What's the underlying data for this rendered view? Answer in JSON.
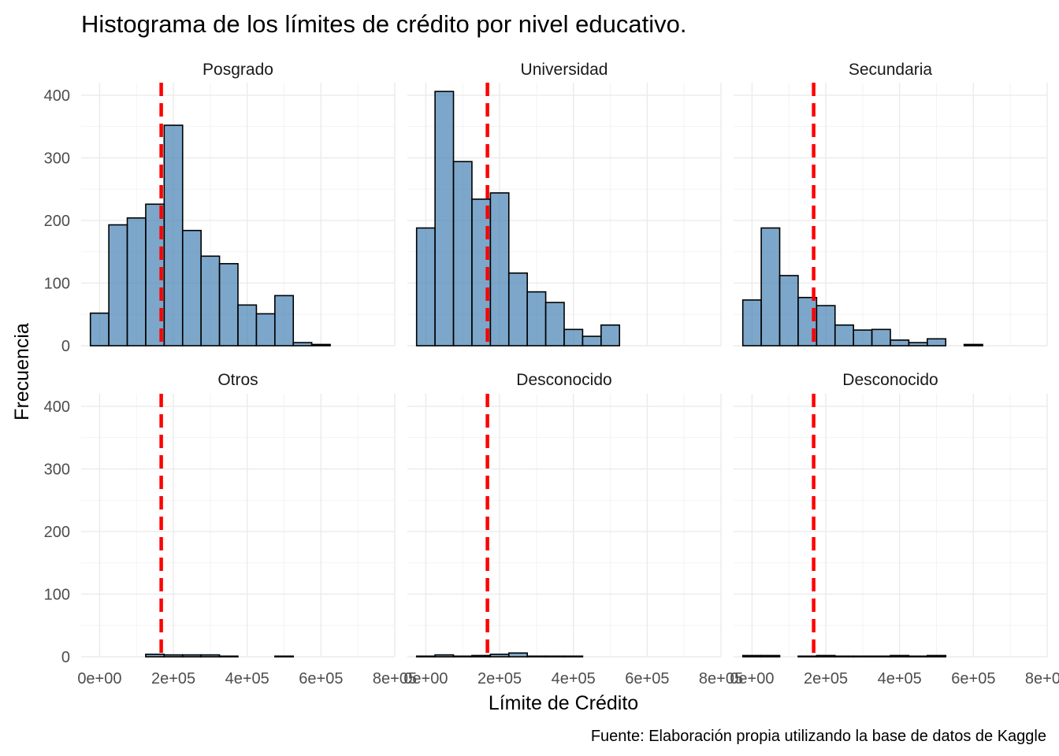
{
  "chart_data": {
    "type": "bar",
    "subtype": "faceted-histogram",
    "title": "Histograma de los límites de crédito por nivel educativo.",
    "xlabel": "Límite de Crédito",
    "ylabel": "Frecuencia",
    "caption": "Fuente: Elaboración propia utilizando la base de datos de Kaggle",
    "xlim": [
      -50000,
      800000
    ],
    "ylim": [
      0,
      420
    ],
    "x_ticks": [
      0,
      200000,
      400000,
      600000,
      800000
    ],
    "x_tick_labels": [
      "0e+00",
      "2e+05",
      "4e+05",
      "6e+05",
      "8e+05"
    ],
    "y_ticks": [
      0,
      100,
      200,
      300,
      400
    ],
    "y_tick_labels": [
      "0",
      "100",
      "200",
      "300",
      "400"
    ],
    "bin_width": 50000,
    "bin_starts": [
      -25000,
      25000,
      75000,
      125000,
      175000,
      225000,
      275000,
      325000,
      375000,
      425000,
      475000,
      525000,
      575000,
      625000,
      675000,
      725000
    ],
    "mean_line": {
      "x": 167000,
      "color": "#ff0000",
      "style": "dashed"
    },
    "bar_fill": "#4682b4",
    "bar_outline": "#000000",
    "layout": {
      "rows": 2,
      "cols": 3
    },
    "facets": [
      {
        "name": "Posgrado",
        "values": [
          52,
          193,
          204,
          226,
          352,
          184,
          143,
          131,
          65,
          51,
          80,
          5,
          2,
          0,
          0,
          0
        ]
      },
      {
        "name": "Universidad",
        "values": [
          188,
          406,
          294,
          234,
          244,
          116,
          86,
          69,
          26,
          15,
          33,
          0,
          0,
          0,
          0,
          0
        ]
      },
      {
        "name": "Secundaria",
        "values": [
          73,
          188,
          112,
          77,
          64,
          33,
          25,
          26,
          9,
          5,
          11,
          0,
          2,
          0,
          0,
          0
        ]
      },
      {
        "name": "Otros",
        "values": [
          0,
          0,
          0,
          4,
          3,
          3,
          3,
          1,
          0,
          0,
          1,
          0,
          0,
          0,
          0,
          0
        ]
      },
      {
        "name": "Desconocido",
        "values": [
          1,
          3,
          1,
          2,
          4,
          6,
          1,
          1,
          1,
          0,
          0,
          0,
          0,
          0,
          0,
          0
        ]
      },
      {
        "name": "Desconocido",
        "values": [
          2,
          2,
          0,
          1,
          2,
          1,
          1,
          1,
          2,
          1,
          2,
          0,
          0,
          0,
          0,
          0
        ]
      }
    ]
  }
}
